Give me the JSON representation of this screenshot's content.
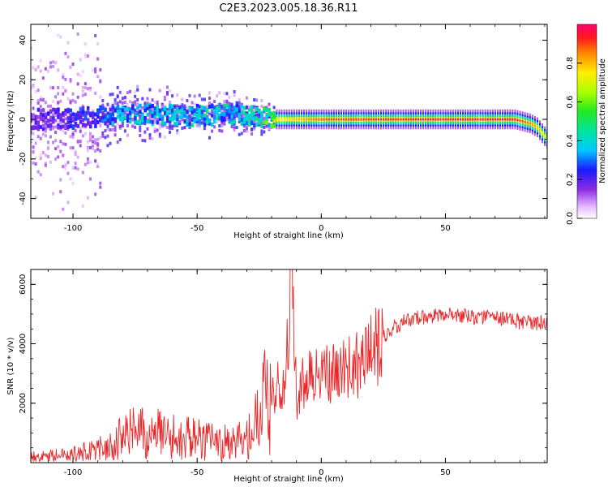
{
  "title": "C2E3.2023.005.18.36.R11",
  "chart_data": [
    {
      "type": "heatmap",
      "id": "spectrogram",
      "xlabel": "Height of straight line (km)",
      "ylabel": "Frequency (Hz)",
      "xlim": [
        -117,
        91
      ],
      "ylim": [
        -50,
        48
      ],
      "xticks": [
        -100,
        -50,
        0,
        50
      ],
      "yticks": [
        -40,
        -20,
        0,
        20,
        40
      ],
      "colorbar": {
        "label": "Normalized spectral amplitude",
        "range": [
          0.0,
          1.0
        ],
        "ticks": [
          0.0,
          0.2,
          0.4,
          0.6,
          0.8
        ]
      },
      "trace": {
        "description": "dominant frequency track",
        "x": [
          -117,
          -90,
          -80,
          -60,
          -45,
          -35,
          -25,
          -18,
          0,
          50,
          78,
          84,
          87,
          89,
          91
        ],
        "y": [
          0,
          1,
          3,
          2,
          2,
          3,
          1,
          0,
          0,
          0,
          0,
          -2,
          -4,
          -7,
          -10
        ],
        "amplitude": [
          0.2,
          0.3,
          0.4,
          0.4,
          0.45,
          0.45,
          0.5,
          0.7,
          0.9,
          0.95,
          0.95,
          0.85,
          0.8,
          0.75,
          0.7
        ]
      }
    },
    {
      "type": "line",
      "id": "snr",
      "xlabel": "Height of straight line (km)",
      "ylabel": "SNR (10 * v/v)",
      "xlim": [
        -117,
        91
      ],
      "ylim": [
        0,
        6500
      ],
      "xticks": [
        -100,
        -50,
        0,
        50
      ],
      "yticks": [
        2000,
        4000,
        6000
      ],
      "color": "#e8282a",
      "series": {
        "name": "SNR",
        "x": [
          -117,
          -105,
          -95,
          -85,
          -80,
          -75,
          -70,
          -65,
          -60,
          -55,
          -50,
          -45,
          -40,
          -35,
          -30,
          -27,
          -25,
          -22,
          -20,
          -18,
          -15,
          -13,
          -12,
          -11,
          -10,
          -8,
          -5,
          0,
          5,
          10,
          15,
          20,
          25,
          30,
          35,
          40,
          45,
          50,
          55,
          60,
          70,
          80,
          91
        ],
        "y": [
          200,
          250,
          400,
          600,
          900,
          1000,
          950,
          950,
          900,
          850,
          800,
          700,
          700,
          650,
          900,
          1600,
          1900,
          2100,
          2300,
          2600,
          2500,
          4500,
          6300,
          5000,
          2000,
          2600,
          2900,
          3000,
          3000,
          3100,
          3300,
          3700,
          4200,
          4600,
          4800,
          4900,
          4950,
          5000,
          4950,
          4900,
          4900,
          4750,
          4700
        ]
      }
    }
  ]
}
